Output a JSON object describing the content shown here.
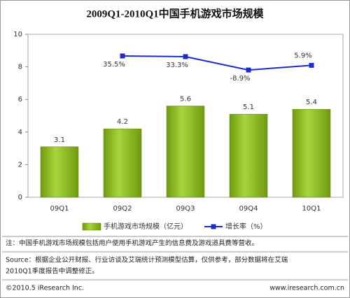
{
  "chart_data": {
    "type": "bar",
    "title": "2009Q1-2010Q1中国手机游戏市场规模",
    "categories": [
      "09Q1",
      "09Q2",
      "09Q3",
      "09Q4",
      "10Q1"
    ],
    "series": [
      {
        "name": "手机游戏市场规模（亿元）",
        "color": "#8cbd1f",
        "type": "bar",
        "values": [
          3.1,
          4.2,
          5.6,
          5.1,
          5.4
        ]
      },
      {
        "name": "增长率（%）",
        "color": "#1f2bc8",
        "type": "line",
        "axis": "y2",
        "values": [
          null,
          35.5,
          33.3,
          -8.9,
          5.9
        ],
        "value_labels": [
          null,
          "35.5%",
          "33.3%",
          "-8.9%",
          "5.9%"
        ]
      }
    ],
    "ylim": [
      0,
      10
    ],
    "yticks": [
      0,
      2,
      4,
      6,
      8,
      10
    ],
    "y2lim": [
      -411,
      104
    ],
    "grid": false,
    "note": "注：中国手机游戏市场规模包括用户使用手机游戏产生的信息费及游戏道具费等营收。",
    "source": [
      "Source：根据企业公开财报、行业访谈及艾瑞统计预测模型估算，仅供参考，部分数据将在艾瑞",
      "2010Q1季度报告中调整修正。"
    ],
    "footer_left": "©2010.5 iResearch Inc.",
    "footer_right": "www.iresearch.com.cn"
  }
}
